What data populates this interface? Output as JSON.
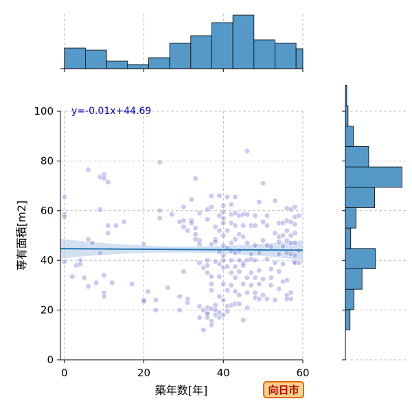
{
  "chart_data": {
    "type": "scatter",
    "xlabel": "築年数[年]",
    "ylabel": "専有面積[m2]",
    "xlim": [
      -1,
      60
    ],
    "ylim": [
      0,
      100
    ],
    "x_ticks": [
      0,
      20,
      40,
      60
    ],
    "y_ticks": [
      0,
      20,
      40,
      60,
      80,
      100
    ],
    "grid": true,
    "annotation": "y=-0.01x+44.69",
    "regression": {
      "slope": -0.01,
      "intercept": 44.69,
      "ci_halfwidth_ends": 4.0,
      "ci_halfwidth_mid": 1.2
    },
    "colors": {
      "points": "#6a6ad0",
      "line": "#1f77b4",
      "band": "#aec7e8",
      "hist": "#5599c8"
    },
    "points": [
      [
        0,
        65.5
      ],
      [
        0,
        58.5
      ],
      [
        0,
        57.5
      ],
      [
        0,
        39.5
      ],
      [
        2,
        33.5
      ],
      [
        3,
        38
      ],
      [
        4,
        40
      ],
      [
        4,
        38.5
      ],
      [
        5,
        33
      ],
      [
        6,
        76.5
      ],
      [
        6,
        48.5
      ],
      [
        6,
        29.5
      ],
      [
        7,
        47
      ],
      [
        8,
        31
      ],
      [
        9,
        60.5
      ],
      [
        9,
        73.5
      ],
      [
        9,
        43
      ],
      [
        10,
        74.5
      ],
      [
        10,
        73
      ],
      [
        10,
        34
      ],
      [
        10,
        27
      ],
      [
        10,
        25.5
      ],
      [
        11,
        71.5
      ],
      [
        11,
        54
      ],
      [
        11,
        51
      ],
      [
        12,
        31
      ],
      [
        13,
        54
      ],
      [
        15,
        55.5
      ],
      [
        17,
        30.5
      ],
      [
        20,
        46.5
      ],
      [
        20,
        24
      ],
      [
        20,
        23.5
      ],
      [
        21,
        27.5
      ],
      [
        23,
        24
      ],
      [
        23,
        20
      ],
      [
        24,
        79.5
      ],
      [
        24,
        60
      ],
      [
        24,
        57
      ],
      [
        26,
        29
      ],
      [
        27,
        58.5
      ],
      [
        29,
        55.5
      ],
      [
        29,
        25.5
      ],
      [
        29,
        20
      ],
      [
        30,
        61.5
      ],
      [
        30,
        56
      ],
      [
        30,
        53.5
      ],
      [
        30,
        35.5
      ],
      [
        31,
        52
      ],
      [
        31,
        24.5
      ],
      [
        31,
        23
      ],
      [
        32,
        64.5
      ],
      [
        32,
        56
      ],
      [
        32,
        55
      ],
      [
        33,
        73
      ],
      [
        33,
        53
      ],
      [
        33,
        50.5
      ],
      [
        33,
        48.5
      ],
      [
        34,
        59
      ],
      [
        34,
        48
      ],
      [
        34,
        46.5
      ],
      [
        34,
        39
      ],
      [
        34,
        21.5
      ],
      [
        34,
        17
      ],
      [
        35,
        37
      ],
      [
        35,
        20
      ],
      [
        35,
        12
      ],
      [
        36,
        60.5
      ],
      [
        36,
        56.5
      ],
      [
        36,
        40
      ],
      [
        36,
        38
      ],
      [
        36,
        35
      ],
      [
        36,
        21
      ],
      [
        36,
        19
      ],
      [
        36,
        18.5
      ],
      [
        36,
        17
      ],
      [
        37,
        66
      ],
      [
        37,
        61.5
      ],
      [
        37,
        46.5
      ],
      [
        37,
        33.5
      ],
      [
        37,
        30.5
      ],
      [
        37,
        28
      ],
      [
        37,
        20.5
      ],
      [
        37,
        15.5
      ],
      [
        37,
        14
      ],
      [
        38,
        53.5
      ],
      [
        38,
        48.5
      ],
      [
        38,
        47.5
      ],
      [
        38,
        39.5
      ],
      [
        38,
        22
      ],
      [
        38,
        20
      ],
      [
        38,
        18
      ],
      [
        39,
        66
      ],
      [
        39,
        58
      ],
      [
        39,
        52
      ],
      [
        39,
        43.5
      ],
      [
        39,
        38.5
      ],
      [
        39,
        33.5
      ],
      [
        39,
        25.5
      ],
      [
        39,
        19
      ],
      [
        39,
        17
      ],
      [
        40,
        62
      ],
      [
        40,
        59.5
      ],
      [
        40,
        57
      ],
      [
        40,
        55
      ],
      [
        40,
        50
      ],
      [
        40,
        46
      ],
      [
        40,
        42
      ],
      [
        40,
        40
      ],
      [
        40,
        37
      ],
      [
        40,
        30.5
      ],
      [
        40,
        24
      ],
      [
        40,
        18
      ],
      [
        41,
        65.5
      ],
      [
        41,
        52
      ],
      [
        41,
        45
      ],
      [
        41,
        37.5
      ],
      [
        41,
        28
      ],
      [
        41,
        21.5
      ],
      [
        41,
        19.5
      ],
      [
        42,
        62.5
      ],
      [
        42,
        58.5
      ],
      [
        42,
        55
      ],
      [
        42,
        47
      ],
      [
        42,
        44
      ],
      [
        42,
        40
      ],
      [
        42,
        35
      ],
      [
        42,
        30
      ],
      [
        42,
        22
      ],
      [
        43,
        65.5
      ],
      [
        43,
        59
      ],
      [
        43,
        54
      ],
      [
        43,
        48.5
      ],
      [
        43,
        43
      ],
      [
        43,
        37.5
      ],
      [
        43,
        33
      ],
      [
        43,
        27.5
      ],
      [
        43,
        22.5
      ],
      [
        44,
        58
      ],
      [
        44,
        50.5
      ],
      [
        44,
        44
      ],
      [
        44,
        40
      ],
      [
        44,
        35.5
      ],
      [
        44,
        26
      ],
      [
        44,
        22.5
      ],
      [
        45,
        58.5
      ],
      [
        45,
        54
      ],
      [
        45,
        49.5
      ],
      [
        45,
        39
      ],
      [
        45,
        38
      ],
      [
        45,
        30.5
      ],
      [
        45,
        16
      ],
      [
        46,
        84
      ],
      [
        46,
        58.5
      ],
      [
        46,
        47
      ],
      [
        46,
        40
      ],
      [
        46,
        33
      ],
      [
        46,
        27
      ],
      [
        46,
        21
      ],
      [
        47,
        54
      ],
      [
        47,
        42.5
      ],
      [
        47,
        40.5
      ],
      [
        47,
        35
      ],
      [
        47,
        30
      ],
      [
        48,
        58
      ],
      [
        48,
        54
      ],
      [
        48,
        46
      ],
      [
        48,
        40
      ],
      [
        48,
        33
      ],
      [
        48,
        27
      ],
      [
        48,
        25
      ],
      [
        49,
        63.5
      ],
      [
        49,
        43
      ],
      [
        49,
        36
      ],
      [
        49,
        30.5
      ],
      [
        49,
        24.5
      ],
      [
        50,
        71
      ],
      [
        50,
        55.5
      ],
      [
        50,
        48
      ],
      [
        50,
        32.5
      ],
      [
        50,
        26
      ],
      [
        51,
        58
      ],
      [
        51,
        54
      ],
      [
        51,
        46
      ],
      [
        51,
        40.5
      ],
      [
        51,
        24.5
      ],
      [
        52,
        45.5
      ],
      [
        52,
        36.5
      ],
      [
        52,
        33
      ],
      [
        52,
        30
      ],
      [
        53,
        64
      ],
      [
        53,
        51
      ],
      [
        53,
        39
      ],
      [
        53,
        24
      ],
      [
        54,
        55
      ],
      [
        54,
        49.5
      ],
      [
        54,
        47.5
      ],
      [
        54,
        42.5
      ],
      [
        54,
        35.5
      ],
      [
        54,
        28.5
      ],
      [
        55,
        55
      ],
      [
        55,
        50
      ],
      [
        55,
        45.5
      ],
      [
        55,
        38.5
      ],
      [
        55,
        31.5
      ],
      [
        56,
        61
      ],
      [
        56,
        56
      ],
      [
        56,
        52
      ],
      [
        56,
        48
      ],
      [
        56,
        43
      ],
      [
        56,
        32
      ],
      [
        56,
        26
      ],
      [
        56,
        24.5
      ],
      [
        57,
        60.5
      ],
      [
        57,
        55.5
      ],
      [
        57,
        50
      ],
      [
        57,
        47
      ],
      [
        57,
        42.5
      ],
      [
        57,
        27
      ],
      [
        57,
        24.5
      ],
      [
        58,
        61.5
      ],
      [
        58,
        57.5
      ],
      [
        58,
        54.5
      ],
      [
        58,
        51
      ],
      [
        58,
        47
      ],
      [
        58,
        42
      ],
      [
        58,
        39.5
      ],
      [
        58,
        39
      ],
      [
        59,
        58
      ],
      [
        59,
        44
      ],
      [
        59,
        39
      ]
    ],
    "top_hist": {
      "bin_start": 0,
      "bin_width": 5.3,
      "counts": [
        30,
        27,
        11,
        6,
        16,
        37,
        48,
        67,
        78,
        42,
        37,
        29
      ]
    },
    "right_hist": {
      "bin_start": 12,
      "bin_width": 8.2,
      "counts": [
        7,
        13,
        25,
        45,
        8,
        16,
        44,
        85,
        35,
        12,
        4,
        2
      ]
    }
  },
  "badge": {
    "label": "向日市"
  }
}
